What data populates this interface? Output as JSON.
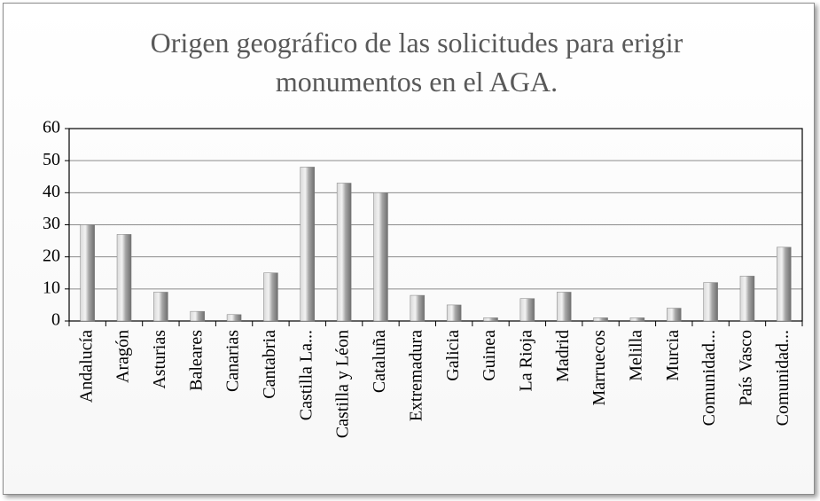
{
  "chart_data": {
    "type": "bar",
    "title": "Origen geográfico de las solicitudes para erigir monumentos en el AGA.",
    "categories": [
      "Andalucía",
      "Aragón",
      "Asturias",
      "Baleares",
      "Canarias",
      "Cantabria",
      "Castilla La...",
      "Castilla y Léon",
      "Cataluña",
      "Extremadura",
      "Galicia",
      "Guinea",
      "La Rioja",
      "Madrid",
      "Marruecos",
      "Melilla",
      "Murcia",
      "Comunidad...",
      "País Vasco",
      "Comunidad..."
    ],
    "values": [
      30,
      27,
      9,
      3,
      2,
      15,
      48,
      43,
      40,
      8,
      5,
      1,
      7,
      9,
      1,
      1,
      4,
      12,
      14,
      23
    ],
    "color": "#a6a6a6",
    "ylim": [
      0,
      60
    ],
    "yticks": [
      0,
      10,
      20,
      30,
      40,
      50,
      60
    ],
    "grid": true
  }
}
